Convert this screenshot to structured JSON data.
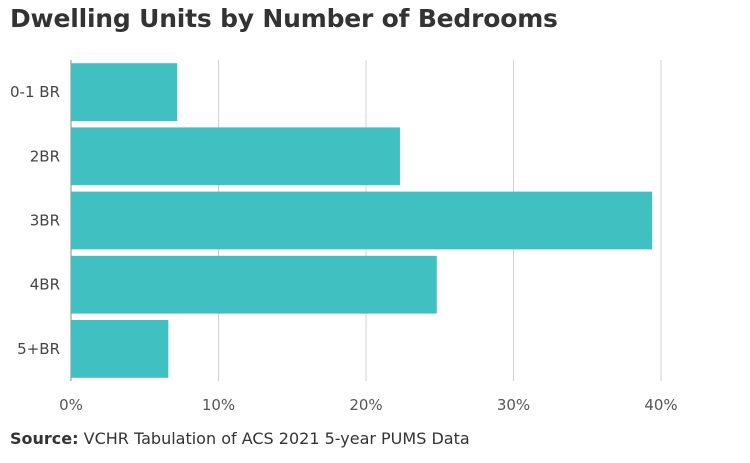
{
  "chart_data": {
    "type": "bar",
    "orientation": "horizontal",
    "title": "Dwelling Units by Number of Bedrooms",
    "categories": [
      "0-1 BR",
      "2BR",
      "3BR",
      "4BR",
      "5+BR"
    ],
    "values": [
      7.2,
      22.3,
      39.4,
      24.8,
      6.6
    ],
    "xlim": [
      0,
      40
    ],
    "xticks": [
      "0%",
      "10%",
      "20%",
      "30%",
      "40%"
    ],
    "grid": true,
    "bar_color": "#41c0c1",
    "xlabel": "",
    "ylabel": ""
  },
  "source": {
    "label": "Source:",
    "text": "VCHR Tabulation of ACS 2021 5-year PUMS Data"
  }
}
